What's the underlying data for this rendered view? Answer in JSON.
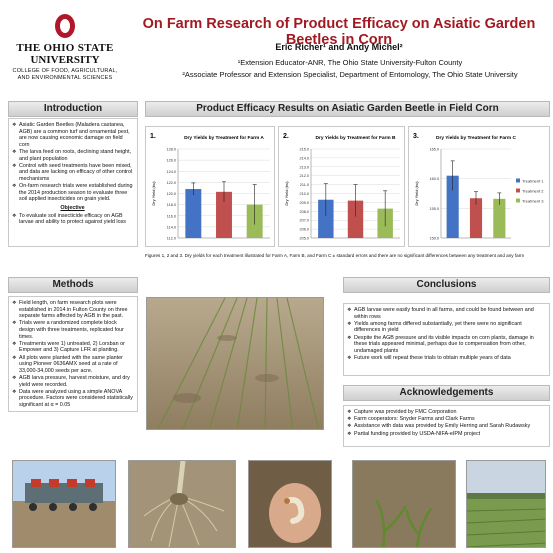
{
  "logo": {
    "line1": "THE OHIO STATE",
    "line2": "UNIVERSITY",
    "line3a": "COLLEGE OF FOOD, AGRICULTURAL,",
    "line3b": "AND ENVIRONMENTAL SCIENCES",
    "brand_color": "#b0182a"
  },
  "header": {
    "title": "On Farm Research of Product Efficacy on Asiatic Garden Beetles in Corn",
    "authors": "Eric Richer¹ and Andy Michel²",
    "affiliation1": "¹Extension Educator-ANR, The Ohio State University-Fulton County",
    "affiliation2": "²Associate Professor and Extension Specialist, Department of Entomology, The Ohio State University"
  },
  "introduction": {
    "heading": "Introduction",
    "bullets": [
      "Asiatic Garden Beetles (Maladera castanea, AGB) are a common turf and ornamental pest, are now causing economic damage on field corn",
      "The larva feed on roots, declining stand height, and plant population",
      "Control with seed treatments have been mixed, and data are lacking on efficacy of other control mechanisms",
      "On-farm research trials were established during the 2014 production season to evaluate three soil applied insecticides on grain yield."
    ],
    "objective_title": "Objective",
    "objective": "To evaluate soil insecticide efficacy on AGB larvae and ability to protect against yield loss"
  },
  "results": {
    "heading": "Product Efficacy Results on Asiatic Garden Beetle in Field Corn",
    "caption": "Figures 1, 2 and 3. Dry yields for each treatment illustrated for Farm A, Farm B, and Farm C ± standard errors and there are no significant differences between any treatment and any farm"
  },
  "chart_data": [
    {
      "type": "bar",
      "number": "1.",
      "title": "Dry Yields by Treatment for Farm A",
      "ylabel": "Dry Yield (bu)",
      "ylim": [
        112.0,
        128.0
      ],
      "ticks": [
        "128.0",
        "126.0",
        "124.0",
        "122.0",
        "120.0",
        "118.0",
        "116.0",
        "114.0",
        "112.0"
      ],
      "categories": [
        "Treatment 1",
        "Treatment 2",
        "Treatment 3"
      ],
      "values": [
        120.8,
        120.3,
        118.0
      ],
      "errors": [
        1.1,
        1.8,
        3.6
      ],
      "colors": [
        "#4472c4",
        "#c0504d",
        "#9bbb59"
      ],
      "legend": []
    },
    {
      "type": "bar",
      "number": "2.",
      "title": "Dry Yields by Treatment for Farm B",
      "ylabel": "Dry Yield (bu)",
      "ylim": [
        205.0,
        215.0
      ],
      "ticks": [
        "215.0",
        "214.0",
        "213.0",
        "212.0",
        "211.0",
        "210.0",
        "209.0",
        "208.0",
        "207.0",
        "206.0",
        "205.0"
      ],
      "categories": [
        "Treatment 1",
        "Treatment 2",
        "Treatment 3"
      ],
      "values": [
        209.3,
        209.2,
        208.3
      ],
      "errors": [
        1.8,
        1.8,
        2.0
      ],
      "colors": [
        "#4472c4",
        "#c0504d",
        "#9bbb59"
      ],
      "legend": []
    },
    {
      "type": "bar",
      "number": "3.",
      "title": "Dry Yields by Treatment for Farm C",
      "ylabel": "Dry Yield (bu)",
      "ylim": [
        150.0,
        165.0
      ],
      "ticks": [
        "165.0",
        "160.0",
        "155.0",
        "150.0"
      ],
      "categories": [
        "Treatment 1",
        "Treatment 2",
        "Treatment 3"
      ],
      "values": [
        160.5,
        156.7,
        156.6
      ],
      "errors": [
        2.5,
        1.1,
        1.0
      ],
      "colors": [
        "#4472c4",
        "#c0504d",
        "#9bbb59"
      ],
      "legend": [
        "Treatment 1",
        "Treatment 2",
        "Treatment 3"
      ]
    }
  ],
  "methods": {
    "heading": "Methods",
    "bullets": [
      "Field length, on farm research plots were established in 2014 in Fulton County on three separate farms affected by AGB in the past.",
      "Trials were a randomized complete block design with three treatments, replicated four times.",
      "Treatments were 1) untreated, 2) Lorsban or Empower and 3) Capture LFR at planting.",
      "All plots were planted with the same planter using Pioneer 0636AMX seed at a rate of 33,000-34,000 seeds per acre.",
      "AGB larva pressure, harvest moisture, and dry yield were recorded.",
      "Data were analyzed using a simple ANOVA procedure. Factors were considered statistically significant at α = 0.05"
    ]
  },
  "conclusions": {
    "heading": "Conclusions",
    "bullets": [
      "AGB larvae were easily found in all farms, and could be found between and within rows",
      "Yields among farms differed substantially, yet there were no significant differences in yield",
      "Despite the AGB pressure  and its visible impacts on corn plants, damage in these trials appeared minimal, perhaps due to compensation from other, undamaged plants",
      "Future work will repeat these trials to obtain multiple years of data"
    ]
  },
  "acknowledgements": {
    "heading": "Acknowledgements",
    "bullets": [
      "Capture was provided by FMC Corporation",
      "Farm cooperators: Snyder Farms and Clark Farms",
      "Assistance with data was  provided by Emily Herring and Sarah Rudawsky",
      "Partial funding provided by USDA-NIFA-eIPM project"
    ]
  }
}
